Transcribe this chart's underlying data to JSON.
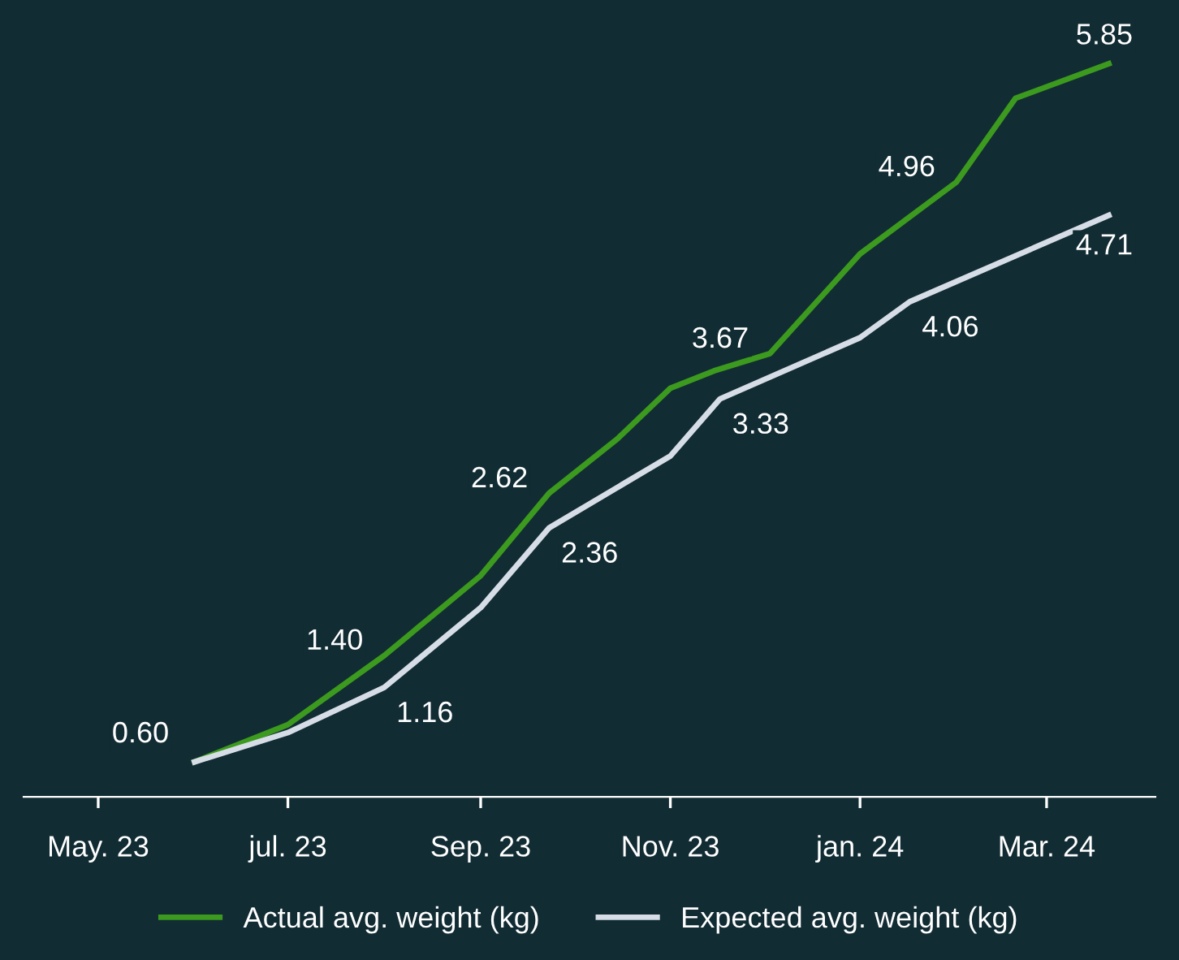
{
  "chart_data": {
    "type": "line",
    "series": [
      {
        "name": "Actual avg. weight (kg)",
        "color": "#3c9a1e",
        "x": [
          "2023-06-01",
          "2023-07-01",
          "2023-08-01",
          "2023-09-01",
          "2023-09-23",
          "2023-10-15",
          "2023-11-01",
          "2023-11-15",
          "2023-12-03",
          "2024-01-01",
          "2024-02-01",
          "2024-02-20",
          "2024-03-21"
        ],
        "values": [
          0.6,
          0.88,
          1.4,
          2.0,
          2.62,
          3.03,
          3.41,
          3.54,
          3.67,
          4.42,
          4.96,
          5.59,
          5.85
        ],
        "value_labels": [
          "0.60",
          null,
          "1.40",
          null,
          "2.62",
          null,
          null,
          null,
          "3.67",
          null,
          "4.96",
          null,
          "5.85"
        ]
      },
      {
        "name": "Expected avg. weight (kg)",
        "color": "#d6dde6",
        "x": [
          "2023-06-01",
          "2023-07-01",
          "2023-08-01",
          "2023-09-01",
          "2023-09-23",
          "2023-11-01",
          "2023-11-17",
          "2024-01-01",
          "2024-01-17",
          "2024-03-21"
        ],
        "values": [
          0.6,
          0.82,
          1.16,
          1.76,
          2.36,
          2.9,
          3.33,
          3.79,
          4.06,
          4.71
        ],
        "value_labels": [
          null,
          null,
          "1.16",
          null,
          "2.36",
          null,
          "3.33",
          null,
          "4.06",
          "4.71"
        ]
      }
    ],
    "xlim": [
      "2023-04-07",
      "2024-04-05"
    ],
    "xticks": [
      {
        "value": "2023-05-01",
        "label": "May. 23"
      },
      {
        "value": "2023-07-01",
        "label": "jul. 23"
      },
      {
        "value": "2023-09-01",
        "label": "Sep. 23"
      },
      {
        "value": "2023-11-01",
        "label": "Nov. 23"
      },
      {
        "value": "2024-01-01",
        "label": "jan. 24"
      },
      {
        "value": "2024-03-01",
        "label": "Mar. 24"
      }
    ],
    "tick_labels": "x",
    "legend": "bottom",
    "grid": false,
    "line_style": "solid",
    "marker": "none"
  }
}
